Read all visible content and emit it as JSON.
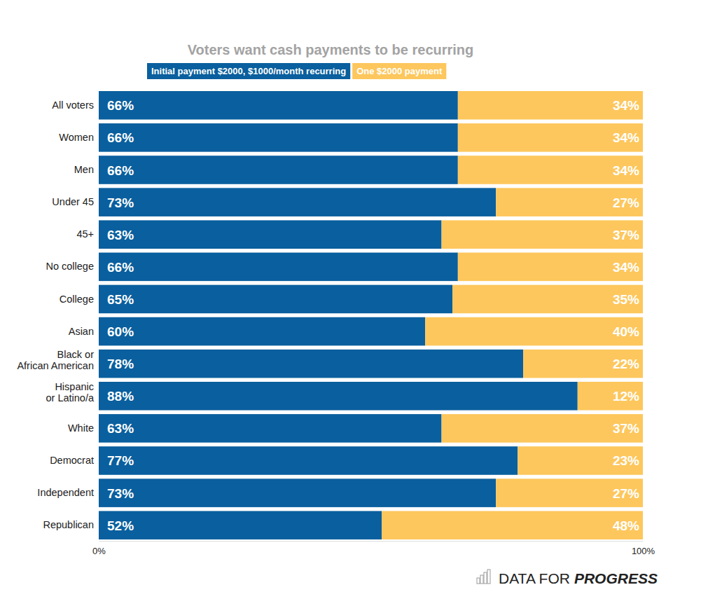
{
  "chart_data": {
    "type": "bar",
    "title": "Voters want cash payments to be recurring",
    "orientation": "horizontal",
    "stacked": true,
    "data_labels": true,
    "grid": false,
    "legend": "top",
    "categories": [
      "All voters",
      "Women",
      "Men",
      "Under 45",
      "45+",
      "No college",
      "College",
      "Asian",
      "Black or\nAfrican American",
      "Hispanic\nor Latino/a",
      "White",
      "Democrat",
      "Independent",
      "Republican"
    ],
    "series": [
      {
        "name": "Initial payment $2000, $1000/month recurring",
        "color": "#0a5f9e",
        "values": [
          66,
          66,
          66,
          73,
          63,
          66,
          65,
          60,
          78,
          88,
          63,
          77,
          73,
          52
        ],
        "value_labels": [
          "66%",
          "66%",
          "66%",
          "73%",
          "63%",
          "66%",
          "65%",
          "60%",
          "78%",
          "88%",
          "63%",
          "77%",
          "73%",
          "52%"
        ]
      },
      {
        "name": "One $2000 payment",
        "color": "#fdc75d",
        "values": [
          34,
          34,
          34,
          27,
          37,
          34,
          35,
          40,
          22,
          12,
          37,
          23,
          27,
          48
        ],
        "value_labels": [
          "34%",
          "34%",
          "34%",
          "27%",
          "37%",
          "34%",
          "35%",
          "40%",
          "22%",
          "12%",
          "37%",
          "23%",
          "27%",
          "48%"
        ]
      }
    ],
    "xlim": [
      0,
      100
    ],
    "xticks": [
      {
        "value": 0,
        "label": "0%"
      },
      {
        "value": 100,
        "label": "100%"
      }
    ],
    "annotations": [
      "DATA FOR",
      "PROGRESS"
    ]
  }
}
